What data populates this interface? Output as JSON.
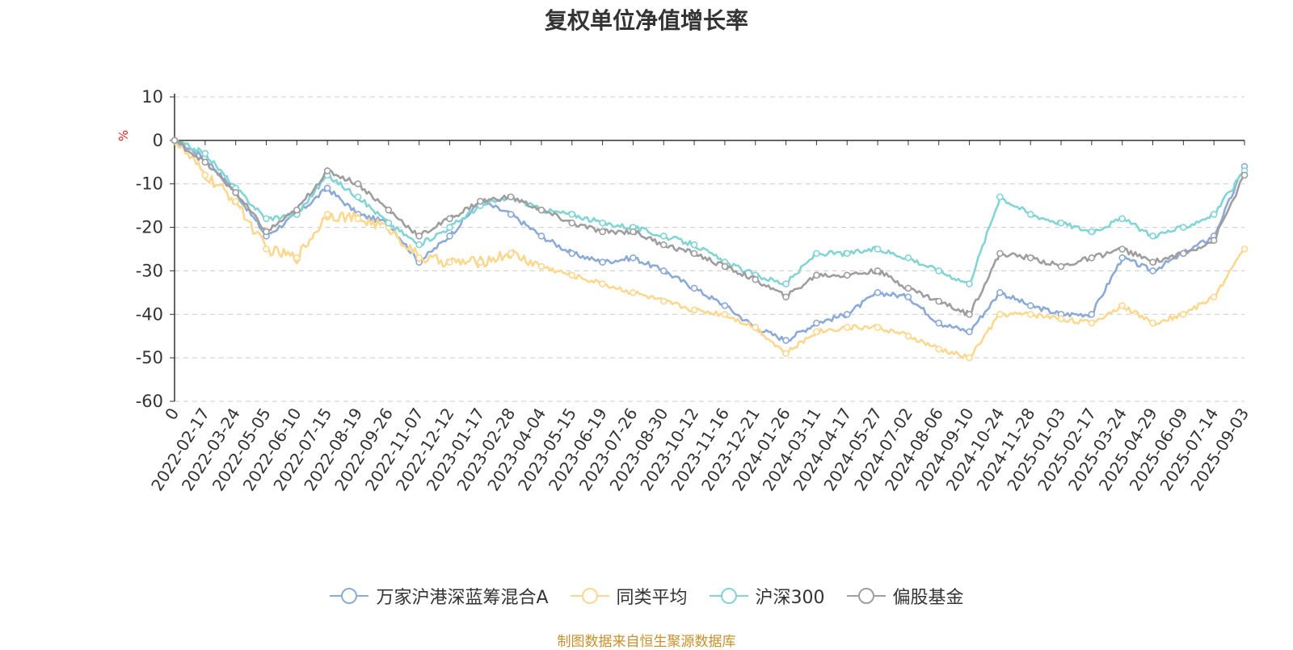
{
  "chart_data": {
    "type": "line",
    "title": "复权单位净值增长率",
    "ylabel": "%",
    "ylim": [
      -60,
      10
    ],
    "yticks": [
      10,
      0,
      -10,
      -20,
      -30,
      -40,
      -50,
      -60
    ],
    "xlabels": [
      "0",
      "2022-02-17",
      "2022-03-24",
      "2022-05-05",
      "2022-06-10",
      "2022-07-15",
      "2022-08-19",
      "2022-09-26",
      "2022-11-07",
      "2022-12-12",
      "2023-01-17",
      "2023-02-28",
      "2023-04-04",
      "2023-05-15",
      "2023-06-19",
      "2023-07-26",
      "2023-08-30",
      "2023-10-12",
      "2023-11-16",
      "2023-12-21",
      "2024-01-26",
      "2024-03-11",
      "2024-04-17",
      "2024-05-27",
      "2024-07-02",
      "2024-08-06",
      "2024-09-10",
      "2024-10-24",
      "2024-11-28",
      "2025-01-03",
      "2025-02-17",
      "2025-03-24",
      "2025-04-29",
      "2025-06-09",
      "2025-07-14",
      "2025-09-03"
    ],
    "grid": true,
    "legend_position": "bottom",
    "series": [
      {
        "name": "万家沪港深蓝筹混合A",
        "color": "#8caad8",
        "values": [
          0,
          -4,
          -12,
          -22,
          -17,
          -11,
          -17,
          -19,
          -28,
          -22,
          -14,
          -17,
          -22,
          -26,
          -28,
          -27,
          -30,
          -34,
          -38,
          -43,
          -46,
          -42,
          -40,
          -35,
          -36,
          -42,
          -44,
          -35,
          -38,
          -40,
          -40,
          -27,
          -30,
          -26,
          -22,
          -6
        ]
      },
      {
        "name": "同类平均",
        "color": "#fcd88f",
        "values": [
          0,
          -8,
          -14,
          -25,
          -27,
          -17,
          -18,
          -20,
          -27,
          -28,
          -28,
          -26,
          -29,
          -31,
          -33,
          -35,
          -37,
          -39,
          -40,
          -43,
          -49,
          -44,
          -43,
          -43,
          -45,
          -48,
          -50,
          -40,
          -40,
          -41,
          -42,
          -38,
          -42,
          -40,
          -36,
          -25
        ]
      },
      {
        "name": "沪深300",
        "color": "#83d4d4",
        "values": [
          0,
          -3,
          -11,
          -18,
          -17,
          -8,
          -13,
          -19,
          -24,
          -20,
          -15,
          -13,
          -16,
          -17,
          -19,
          -20,
          -22,
          -24,
          -28,
          -31,
          -33,
          -26,
          -26,
          -25,
          -27,
          -30,
          -33,
          -13,
          -17,
          -19,
          -21,
          -18,
          -22,
          -20,
          -17,
          -7
        ]
      },
      {
        "name": "偏股基金",
        "color": "#9e9e9e",
        "values": [
          0,
          -5,
          -12,
          -21,
          -16,
          -7,
          -10,
          -16,
          -22,
          -18,
          -14,
          -13,
          -16,
          -19,
          -21,
          -21,
          -24,
          -26,
          -29,
          -32,
          -36,
          -31,
          -31,
          -30,
          -34,
          -37,
          -40,
          -26,
          -27,
          -29,
          -27,
          -25,
          -28,
          -26,
          -23,
          -8
        ]
      }
    ]
  },
  "source_note": "制图数据来自恒生聚源数据库"
}
